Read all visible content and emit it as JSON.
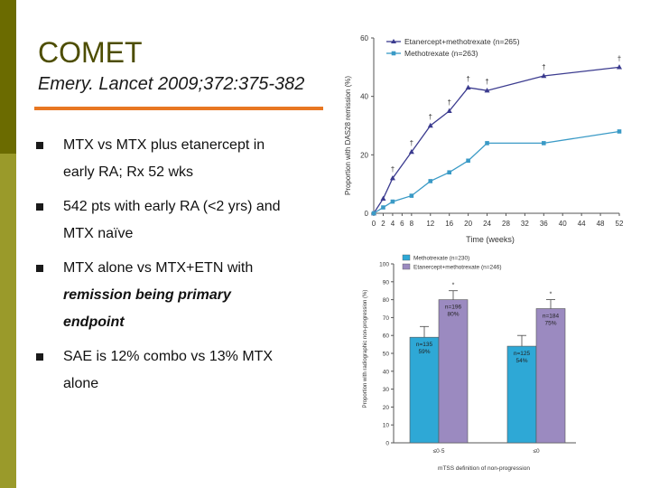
{
  "slide": {
    "title": "COMET",
    "subtitle": "Emery. Lancet 2009;372:375-382",
    "bullets": [
      {
        "line1": "MTX vs MTX plus etanercept in",
        "line2": "early RA; Rx 52 wks"
      },
      {
        "line1": "542 pts with early RA (<2 yrs) and",
        "line2": "MTX naïve"
      },
      {
        "line1": "MTX alone vs MTX+ETN with",
        "line2": "remission being primary",
        "line3": "endpoint"
      },
      {
        "line1": "SAE is 12% combo vs 13% MTX",
        "line2": "alone"
      }
    ]
  },
  "colors": {
    "combo": "#3b3b8f",
    "mtx": "#3a9ac6",
    "accent": "#e87722",
    "bar_mtx": "#2ea8d6",
    "bar_combo": "#9b8ac0"
  },
  "chart_data": [
    {
      "type": "line",
      "ylabel": "Proportion with DAS28 remission (%)",
      "xlabel": "Time (weeks)",
      "ylim": [
        0,
        60
      ],
      "yticks": [
        0,
        20,
        40,
        60
      ],
      "xticks": [
        0,
        2,
        4,
        6,
        8,
        12,
        16,
        20,
        24,
        28,
        32,
        36,
        40,
        44,
        48,
        52
      ],
      "series": [
        {
          "name": "Etanercept+methotrexate (n=265)",
          "x": [
            0,
            2,
            4,
            8,
            12,
            16,
            20,
            24,
            36,
            52
          ],
          "values": [
            0,
            5,
            12,
            21,
            30,
            35,
            43,
            42,
            47,
            50
          ],
          "markers": [
            "",
            "",
            "†",
            "†",
            "†",
            "†",
            "†",
            "†",
            "†",
            "†"
          ]
        },
        {
          "name": "Methotrexate (n=263)",
          "x": [
            0,
            2,
            4,
            8,
            12,
            16,
            20,
            24,
            36,
            52
          ],
          "values": [
            0,
            2,
            4,
            6,
            11,
            14,
            18,
            24,
            24,
            28
          ]
        }
      ]
    },
    {
      "type": "bar",
      "ylabel": "Proportion with radiographic non-progression (%)",
      "xlabel": "mTSS definition of non-progression",
      "ylim": [
        0,
        100
      ],
      "yticks": [
        0,
        10,
        20,
        30,
        40,
        50,
        60,
        70,
        80,
        90,
        100
      ],
      "categories": [
        "≤0·5",
        "≤0"
      ],
      "series": [
        {
          "name": "Methotrexate (n=230)",
          "values": [
            59,
            54
          ],
          "errors": [
            6,
            6
          ],
          "labels": [
            "n=135\n59%",
            "n=125\n54%"
          ]
        },
        {
          "name": "Etanercept+methotrexate (n=246)",
          "values": [
            80,
            75
          ],
          "errors": [
            5,
            5
          ],
          "labels": [
            "n=196\n80%",
            "n=184\n75%"
          ]
        }
      ],
      "sig": [
        "*",
        "*"
      ]
    }
  ]
}
